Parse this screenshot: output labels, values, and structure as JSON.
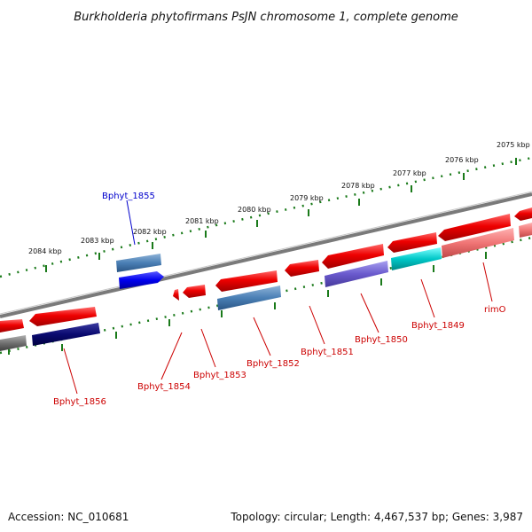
{
  "title": "Burkholderia phytofirmans PsJN chromosome 1, complete genome",
  "accession": "Accession: NC_010681",
  "topology": "Topology: circular; Length: 4,467,537 bp; Genes: 3,987",
  "colors": {
    "gene_red": "#e80000",
    "gene_pink": "#f07070",
    "label_red": "#cc0000",
    "label_blue": "#0000cc",
    "scale_green": "#1a7a1a",
    "backbone": "#808080"
  },
  "scale_labels": [
    "2084 kbp",
    "2083 kbp",
    "2082 kbp",
    "2081 kbp",
    "2080 kbp",
    "2079 kbp",
    "2078 kbp",
    "2077 kbp",
    "2076 kbp",
    "2075 kbp"
  ],
  "gene_labels": [
    {
      "text": "Bphyt_1855",
      "color": "blue"
    },
    {
      "text": "Bphyt_1856",
      "color": "red"
    },
    {
      "text": "Bphyt_1854",
      "color": "red"
    },
    {
      "text": "Bphyt_1853",
      "color": "red"
    },
    {
      "text": "Bphyt_1852",
      "color": "red"
    },
    {
      "text": "Bphyt_1851",
      "color": "red"
    },
    {
      "text": "Bphyt_1850",
      "color": "red"
    },
    {
      "text": "Bphyt_1849",
      "color": "red"
    },
    {
      "text": "rimO",
      "color": "red"
    }
  ]
}
